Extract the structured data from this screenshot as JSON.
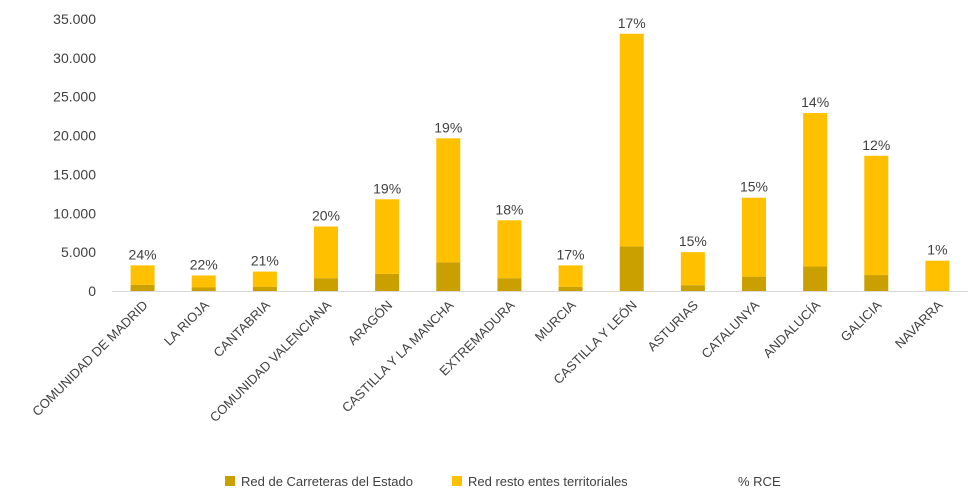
{
  "chart_data": {
    "type": "bar",
    "stacked": true,
    "categories": [
      "COMUNIDAD DE MADRID",
      "LA RIOJA",
      "CANTABRIA",
      "COMUNIDAD VALENCIANA",
      "ARAGÓN",
      "CASTILLA Y LA MANCHA",
      "EXTREMADURA",
      "MURCIA",
      "CASTILLA Y LEÓN",
      "ASTURIAS",
      "CATALUNYA",
      "ANDALUCÍA",
      "GALICIA",
      "NAVARRA"
    ],
    "series": [
      {
        "name": "Red de Carreteras del Estado",
        "color": "#c9a000",
        "values": [
          800,
          450,
          520,
          1650,
          2200,
          3700,
          1650,
          550,
          5750,
          750,
          1850,
          3150,
          2050,
          50
        ]
      },
      {
        "name": "Red resto entes territoriales",
        "color": "#ffc000",
        "values": [
          2500,
          1550,
          1980,
          6650,
          9600,
          15950,
          7450,
          2750,
          27350,
          4250,
          10150,
          19750,
          15350,
          3850
        ]
      }
    ],
    "percent_series": {
      "name": "% RCE",
      "labels": [
        "24%",
        "22%",
        "21%",
        "20%",
        "19%",
        "19%",
        "18%",
        "17%",
        "17%",
        "15%",
        "15%",
        "14%",
        "12%",
        "1%"
      ]
    },
    "ylim": [
      0,
      35000
    ],
    "yticks": [
      "0",
      "5.000",
      "10.000",
      "15.000",
      "20.000",
      "25.000",
      "30.000",
      "35.000"
    ],
    "ytick_values": [
      0,
      5000,
      10000,
      15000,
      20000,
      25000,
      30000,
      35000
    ],
    "grid": false,
    "legend_position": "bottom"
  }
}
